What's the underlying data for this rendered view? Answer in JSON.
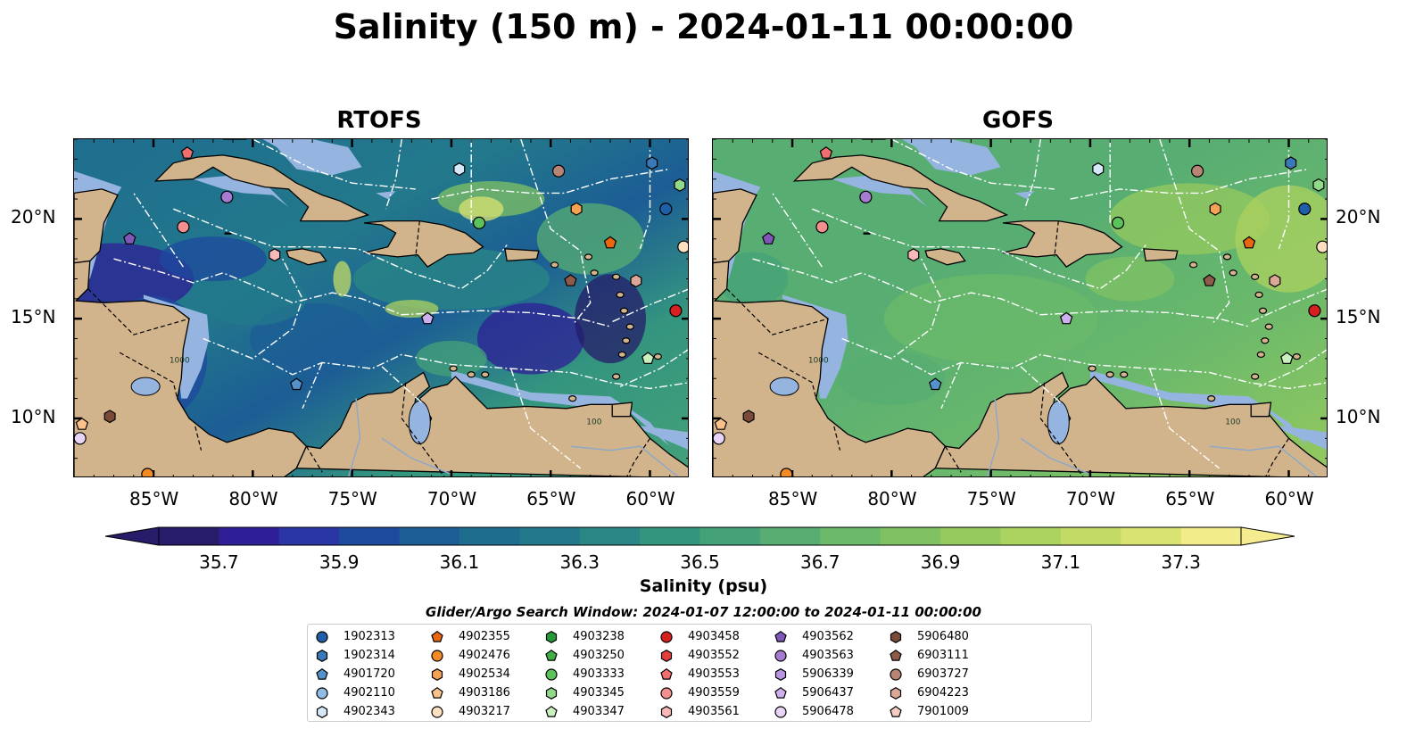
{
  "title": "Salinity (150 m) - 2024-01-11 00:00:00",
  "panels": [
    {
      "id": "rtofs",
      "title": "RTOFS"
    },
    {
      "id": "gofs",
      "title": "GOFS"
    }
  ],
  "map": {
    "lon_range": [
      -89,
      -58
    ],
    "lat_range": [
      7,
      24
    ],
    "lon_ticks": [
      "85°W",
      "80°W",
      "75°W",
      "70°W",
      "65°W",
      "60°W"
    ],
    "lon_tick_values": [
      -85,
      -80,
      -75,
      -70,
      -65,
      -60
    ],
    "lat_ticks": [
      "20°N",
      "15°N",
      "10°N"
    ],
    "lat_tick_values": [
      20,
      15,
      10
    ],
    "land_color": "#d2b48c",
    "shelf_color": "#95b5e0",
    "contour_labels": [
      "1000",
      "100"
    ]
  },
  "colorbar": {
    "label": "Salinity (psu)",
    "min": 35.6,
    "max": 37.4,
    "ticks": [
      "35.7",
      "35.9",
      "36.1",
      "36.3",
      "36.5",
      "36.7",
      "36.9",
      "37.1",
      "37.3"
    ],
    "colors": [
      "#261c6a",
      "#2e1f96",
      "#2a36a3",
      "#1e4a9d",
      "#1c5d95",
      "#1e6d8f",
      "#23798b",
      "#2a8786",
      "#34957f",
      "#44a178",
      "#57ad72",
      "#6bb96b",
      "#80c263",
      "#96ca5e",
      "#acd25f",
      "#c3db66",
      "#d9e372",
      "#f2ec8a"
    ],
    "under_color": "#261c6a",
    "over_color": "#f5ec8f"
  },
  "search_window": "Glider/Argo Search Window: 2024-01-07 12:00:00 to 2024-01-11 00:00:00",
  "legend": [
    {
      "id": "1902313",
      "marker": "circle",
      "color": "#1f5fa8"
    },
    {
      "id": "1902314",
      "marker": "hexagon",
      "color": "#3a78b8"
    },
    {
      "id": "4901720",
      "marker": "pentagon",
      "color": "#5492cc"
    },
    {
      "id": "4902110",
      "marker": "circle",
      "color": "#8fbde6"
    },
    {
      "id": "4902343",
      "marker": "hexagon",
      "color": "#d6e8f7"
    },
    {
      "id": "4902355",
      "marker": "pentagon",
      "color": "#e8670f"
    },
    {
      "id": "4902476",
      "marker": "circle",
      "color": "#f38a24"
    },
    {
      "id": "4902534",
      "marker": "hexagon",
      "color": "#f6a255"
    },
    {
      "id": "4903186",
      "marker": "pentagon",
      "color": "#fbc18a"
    },
    {
      "id": "4903217",
      "marker": "circle",
      "color": "#fde0c0"
    },
    {
      "id": "4903238",
      "marker": "hexagon",
      "color": "#239b3a"
    },
    {
      "id": "4903250",
      "marker": "pentagon",
      "color": "#3eae45"
    },
    {
      "id": "4903333",
      "marker": "circle",
      "color": "#5cc25c"
    },
    {
      "id": "4903345",
      "marker": "hexagon",
      "color": "#93d98a"
    },
    {
      "id": "4903347",
      "marker": "pentagon",
      "color": "#c9f0bf"
    },
    {
      "id": "4903458",
      "marker": "circle",
      "color": "#d62020"
    },
    {
      "id": "4903552",
      "marker": "hexagon",
      "color": "#e33d3d"
    },
    {
      "id": "4903553",
      "marker": "pentagon",
      "color": "#ef6f6f"
    },
    {
      "id": "4903559",
      "marker": "circle",
      "color": "#f48f8f"
    },
    {
      "id": "4903561",
      "marker": "hexagon",
      "color": "#f9b9b9"
    },
    {
      "id": "4903562",
      "marker": "pentagon",
      "color": "#7e57b8"
    },
    {
      "id": "4903563",
      "marker": "circle",
      "color": "#a57cd1"
    },
    {
      "id": "5906339",
      "marker": "hexagon",
      "color": "#b994e0"
    },
    {
      "id": "5906437",
      "marker": "pentagon",
      "color": "#cfb0ee"
    },
    {
      "id": "5906478",
      "marker": "circle",
      "color": "#e8d4f7"
    },
    {
      "id": "5906480",
      "marker": "hexagon",
      "color": "#7a4a3a"
    },
    {
      "id": "6903111",
      "marker": "pentagon",
      "color": "#8e5a4a"
    },
    {
      "id": "6903727",
      "marker": "circle",
      "color": "#b88475"
    },
    {
      "id": "6904223",
      "marker": "hexagon",
      "color": "#dba897"
    },
    {
      "id": "7901009",
      "marker": "pentagon",
      "color": "#f5ccbf"
    }
  ],
  "floats": [
    {
      "id": "4903553",
      "lon": -83.3,
      "lat": 23.3
    },
    {
      "id": "4903563",
      "lon": -81.3,
      "lat": 21.1
    },
    {
      "id": "4903559",
      "lon": -83.5,
      "lat": 19.6
    },
    {
      "id": "4903562",
      "lon": -86.2,
      "lat": 19.0
    },
    {
      "id": "4903561",
      "lon": -78.9,
      "lat": 18.2
    },
    {
      "id": "4902343",
      "lon": -69.6,
      "lat": 22.5
    },
    {
      "id": "6903727",
      "lon": -64.6,
      "lat": 22.4
    },
    {
      "id": "1902314",
      "lon": -59.9,
      "lat": 22.8
    },
    {
      "id": "4903345",
      "lon": -58.5,
      "lat": 21.7
    },
    {
      "id": "4903333",
      "lon": -68.6,
      "lat": 19.8
    },
    {
      "id": "4902534",
      "lon": -63.7,
      "lat": 20.5
    },
    {
      "id": "1902313",
      "lon": -59.2,
      "lat": 20.5
    },
    {
      "id": "4902355",
      "lon": -62.0,
      "lat": 18.8
    },
    {
      "id": "4903217",
      "lon": -58.3,
      "lat": 18.6
    },
    {
      "id": "6903111",
      "lon": -64.0,
      "lat": 16.9
    },
    {
      "id": "6904223",
      "lon": -60.7,
      "lat": 16.9
    },
    {
      "id": "4903458",
      "lon": -58.7,
      "lat": 15.4
    },
    {
      "id": "5906437",
      "lon": -71.2,
      "lat": 15.0
    },
    {
      "id": "4903347",
      "lon": -60.1,
      "lat": 13.0
    },
    {
      "id": "4901720",
      "lon": -77.8,
      "lat": 11.7
    },
    {
      "id": "4903186",
      "lon": -88.6,
      "lat": 9.7
    },
    {
      "id": "5906480",
      "lon": -87.2,
      "lat": 10.1
    },
    {
      "id": "5906478",
      "lon": -88.7,
      "lat": 9.0
    },
    {
      "id": "4902476",
      "lon": -85.3,
      "lat": 7.2
    }
  ]
}
